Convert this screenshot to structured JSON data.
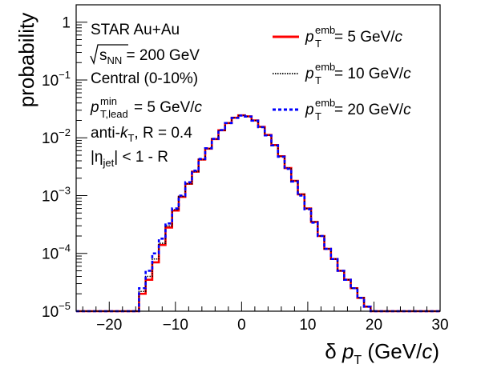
{
  "chart_data": {
    "type": "line",
    "ylabel": "probability",
    "xlabel": {
      "delta": "δ",
      "p": "p",
      "sub": "T",
      "unit_open": " (GeV/",
      "unit_c": "c",
      "unit_close": ")"
    },
    "xlim": [
      -25,
      30
    ],
    "ylim": [
      1e-05,
      2
    ],
    "log_y": true,
    "grid": false,
    "x_ticks": [
      -20,
      -10,
      0,
      10,
      20,
      30
    ],
    "x_tick_labels": [
      "−20",
      "−10",
      "0",
      "10",
      "20",
      "30"
    ],
    "y_ticks": [
      {
        "value": 1,
        "base": "1",
        "exp": ""
      },
      {
        "value": 0.1,
        "base": "10",
        "exp": "−1"
      },
      {
        "value": 0.01,
        "base": "10",
        "exp": "−2"
      },
      {
        "value": 0.001,
        "base": "10",
        "exp": "−3"
      },
      {
        "value": 0.0001,
        "base": "10",
        "exp": "−4"
      },
      {
        "value": 1e-05,
        "base": "10",
        "exp": "−5"
      }
    ],
    "annotations": {
      "line1": "STAR Au+Au",
      "sqrt_s": "s",
      "sqrt_s_sub": "NN",
      "sqrt_s_value": " = 200 GeV",
      "centrality": "Central (0-10%)",
      "ptlead_p": "p",
      "ptlead_sup": "min",
      "ptlead_sub": "T,lead",
      "ptlead_value": " = 5 GeV/",
      "ptlead_c": "c",
      "algo_a": "anti-",
      "algo_k": "k",
      "algo_sub": "T",
      "algo_b": ", R = 0.4",
      "eta_open": "|η",
      "eta_sub": "jet",
      "eta_rest": "| < 1 - R"
    },
    "legend_position": "top-right",
    "series": [
      {
        "name": {
          "p": "p",
          "sup": "emb",
          "sub": "T",
          "value": " = 5 GeV/",
          "c": "c"
        },
        "color": "#ff0000",
        "dash": "solid",
        "x": [
          -15,
          -14,
          -13,
          -12,
          -11,
          -10,
          -9,
          -8,
          -7,
          -6,
          -5,
          -4,
          -3,
          -2,
          -1,
          0,
          1,
          2,
          3,
          4,
          5,
          6,
          7,
          8,
          9,
          10,
          11,
          12,
          13,
          14,
          15,
          16,
          17,
          18,
          19,
          20
        ],
        "y": [
          2e-05,
          3.5e-05,
          7e-05,
          0.00014,
          0.00028,
          0.00055,
          0.00095,
          0.0016,
          0.0026,
          0.0042,
          0.0065,
          0.0095,
          0.0135,
          0.018,
          0.0222,
          0.0245,
          0.0235,
          0.02,
          0.0155,
          0.0112,
          0.0075,
          0.0048,
          0.003,
          0.0018,
          0.00105,
          0.0006,
          0.00035,
          0.0002,
          0.00012,
          8e-05,
          5e-05,
          3.5e-05,
          2.5e-05,
          1.7e-05,
          1.2e-05,
          1e-05
        ]
      },
      {
        "name": {
          "p": "p",
          "sup": "emb",
          "sub": "T",
          "value": " = 10 GeV/",
          "c": "c"
        },
        "color": "#000000",
        "dash": "dotted",
        "x": [
          -15,
          -14,
          -13,
          -12,
          -11,
          -10,
          -9,
          -8,
          -7,
          -6,
          -5,
          -4,
          -3,
          -2,
          -1,
          0,
          1,
          2,
          3,
          4,
          5,
          6,
          7,
          8,
          9,
          10,
          11,
          12,
          13,
          14,
          15,
          16,
          17,
          18,
          19,
          20
        ],
        "y": [
          2.2e-05,
          4e-05,
          8e-05,
          0.00015,
          0.0003,
          0.00057,
          0.00097,
          0.0016,
          0.0026,
          0.0042,
          0.0065,
          0.0095,
          0.0135,
          0.018,
          0.0222,
          0.0244,
          0.0234,
          0.0199,
          0.0154,
          0.0111,
          0.0074,
          0.0048,
          0.003,
          0.0018,
          0.00105,
          0.0006,
          0.00035,
          0.0002,
          0.00012,
          8e-05,
          5e-05,
          3.5e-05,
          2.5e-05,
          1.7e-05,
          1.2e-05,
          1e-05
        ]
      },
      {
        "name": {
          "p": "p",
          "sup": "emb",
          "sub": "T",
          "value": " = 20 GeV/",
          "c": "c"
        },
        "color": "#0000ff",
        "dash": "dashed",
        "x": [
          -15,
          -14,
          -13,
          -12,
          -11,
          -10,
          -9,
          -8,
          -7,
          -6,
          -5,
          -4,
          -3,
          -2,
          -1,
          0,
          1,
          2,
          3,
          4,
          5,
          6,
          7,
          8,
          9,
          10,
          11,
          12,
          13,
          14,
          15,
          16,
          17,
          18,
          19,
          20
        ],
        "y": [
          2.5e-05,
          5e-05,
          0.0001,
          0.00018,
          0.00033,
          0.0006,
          0.001,
          0.0017,
          0.0027,
          0.0043,
          0.0066,
          0.0096,
          0.0136,
          0.018,
          0.0221,
          0.0243,
          0.0233,
          0.0198,
          0.0153,
          0.011,
          0.0074,
          0.0047,
          0.0029,
          0.00175,
          0.001,
          0.00058,
          0.00034,
          0.0002,
          0.00012,
          8e-05,
          5e-05,
          3.5e-05,
          2.5e-05,
          1.7e-05,
          1.2e-05,
          1e-05
        ]
      }
    ]
  }
}
